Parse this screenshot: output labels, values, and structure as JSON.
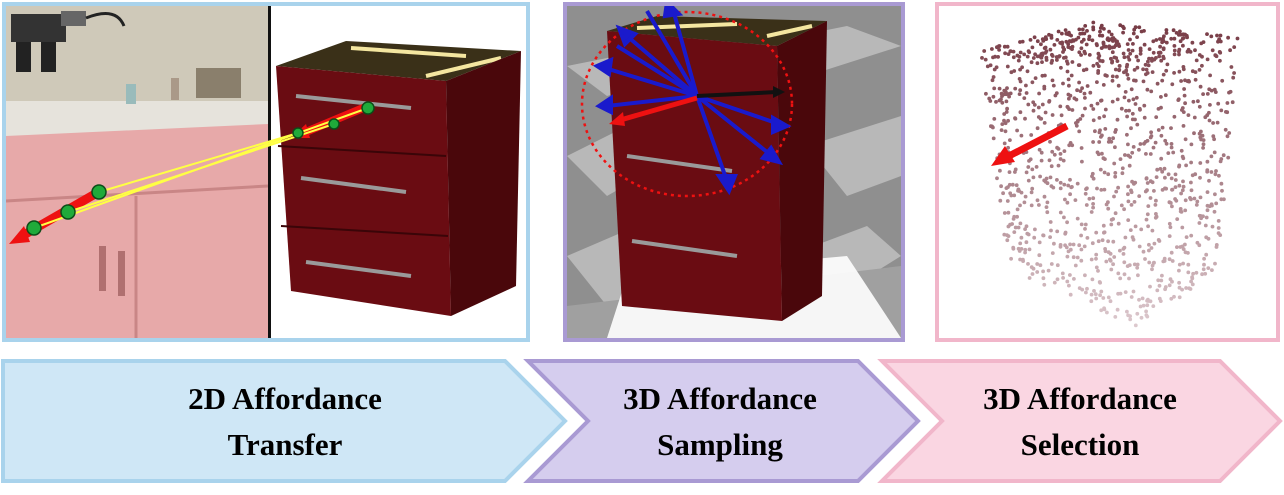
{
  "stages": [
    {
      "line1": "2D Affordance",
      "line2": "Transfer",
      "color": "#cfe7f6",
      "border": "#a9d3ec"
    },
    {
      "line1": "3D Affordance",
      "line2": "Sampling",
      "color": "#d5cdee",
      "border": "#a99ad3"
    },
    {
      "line1": "3D Affordance",
      "line2": "Selection",
      "color": "#fad6e2",
      "border": "#f1b6ca"
    }
  ],
  "colors": {
    "affordance_arrow": "#ee1111",
    "sample_arrow": "#1a1acc",
    "cabinet": "#5a0a0e",
    "point_cloud": "#7a4a50",
    "correspondence_line": "#ffff44",
    "keypoint": "#1faa3a"
  },
  "icons": {
    "panel1": "human-demo-to-cabinet-transfer",
    "panel2": "sampled-3d-direction-arrows",
    "panel3": "point-cloud-with-selected-arrow"
  }
}
